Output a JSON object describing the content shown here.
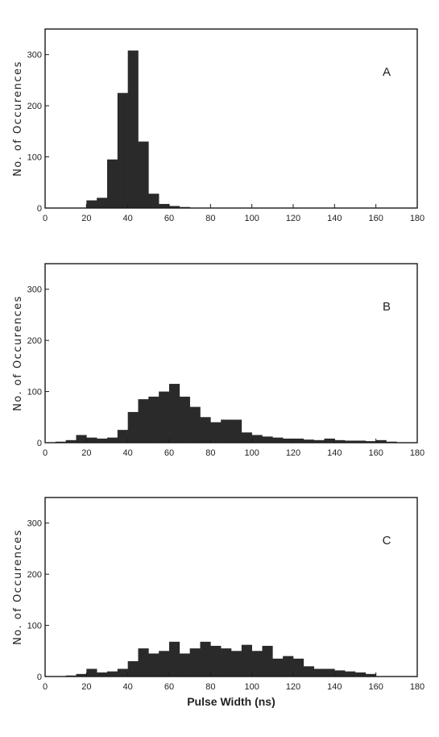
{
  "chart_data": [
    {
      "type": "bar",
      "panel_label": "A",
      "ylabel": "No. of Occurences",
      "xlim": [
        0,
        180
      ],
      "ylim": [
        0,
        350
      ],
      "x_ticks": [
        "0",
        "20",
        "40",
        "60",
        "80",
        "100",
        "120",
        "140",
        "160",
        "180"
      ],
      "y_ticks": [
        "0",
        "100",
        "200",
        "300"
      ],
      "bin_width": 5,
      "bins": [
        {
          "x": 20,
          "y": 15
        },
        {
          "x": 25,
          "y": 20
        },
        {
          "x": 30,
          "y": 95
        },
        {
          "x": 35,
          "y": 225
        },
        {
          "x": 40,
          "y": 308
        },
        {
          "x": 45,
          "y": 130
        },
        {
          "x": 50,
          "y": 28
        },
        {
          "x": 55,
          "y": 8
        },
        {
          "x": 60,
          "y": 4
        },
        {
          "x": 65,
          "y": 2
        }
      ]
    },
    {
      "type": "bar",
      "panel_label": "B",
      "ylabel": "No. of Occurences",
      "xlim": [
        0,
        180
      ],
      "ylim": [
        0,
        350
      ],
      "x_ticks": [
        "0",
        "20",
        "40",
        "60",
        "80",
        "100",
        "120",
        "140",
        "160",
        "180"
      ],
      "y_ticks": [
        "0",
        "100",
        "200",
        "300"
      ],
      "bin_width": 5,
      "bins": [
        {
          "x": 5,
          "y": 2
        },
        {
          "x": 10,
          "y": 5
        },
        {
          "x": 15,
          "y": 15
        },
        {
          "x": 20,
          "y": 10
        },
        {
          "x": 25,
          "y": 8
        },
        {
          "x": 30,
          "y": 10
        },
        {
          "x": 35,
          "y": 25
        },
        {
          "x": 40,
          "y": 60
        },
        {
          "x": 45,
          "y": 85
        },
        {
          "x": 50,
          "y": 90
        },
        {
          "x": 55,
          "y": 100
        },
        {
          "x": 60,
          "y": 115
        },
        {
          "x": 65,
          "y": 90
        },
        {
          "x": 70,
          "y": 70
        },
        {
          "x": 75,
          "y": 50
        },
        {
          "x": 80,
          "y": 40
        },
        {
          "x": 85,
          "y": 45
        },
        {
          "x": 90,
          "y": 45
        },
        {
          "x": 95,
          "y": 20
        },
        {
          "x": 100,
          "y": 15
        },
        {
          "x": 105,
          "y": 12
        },
        {
          "x": 110,
          "y": 10
        },
        {
          "x": 115,
          "y": 8
        },
        {
          "x": 120,
          "y": 8
        },
        {
          "x": 125,
          "y": 6
        },
        {
          "x": 130,
          "y": 5
        },
        {
          "x": 135,
          "y": 8
        },
        {
          "x": 140,
          "y": 5
        },
        {
          "x": 145,
          "y": 4
        },
        {
          "x": 150,
          "y": 4
        },
        {
          "x": 155,
          "y": 3
        },
        {
          "x": 160,
          "y": 5
        },
        {
          "x": 165,
          "y": 2
        }
      ]
    },
    {
      "type": "bar",
      "panel_label": "C",
      "ylabel": "No. of Occurences",
      "xlabel": "Pulse Width (ns)",
      "xlim": [
        0,
        180
      ],
      "ylim": [
        0,
        350
      ],
      "x_ticks": [
        "0",
        "20",
        "40",
        "60",
        "80",
        "100",
        "120",
        "140",
        "160",
        "180"
      ],
      "y_ticks": [
        "0",
        "100",
        "200",
        "300"
      ],
      "bin_width": 5,
      "bins": [
        {
          "x": 10,
          "y": 2
        },
        {
          "x": 15,
          "y": 5
        },
        {
          "x": 20,
          "y": 15
        },
        {
          "x": 25,
          "y": 8
        },
        {
          "x": 30,
          "y": 10
        },
        {
          "x": 35,
          "y": 15
        },
        {
          "x": 40,
          "y": 30
        },
        {
          "x": 45,
          "y": 55
        },
        {
          "x": 50,
          "y": 45
        },
        {
          "x": 55,
          "y": 50
        },
        {
          "x": 60,
          "y": 68
        },
        {
          "x": 65,
          "y": 45
        },
        {
          "x": 70,
          "y": 55
        },
        {
          "x": 75,
          "y": 68
        },
        {
          "x": 80,
          "y": 60
        },
        {
          "x": 85,
          "y": 55
        },
        {
          "x": 90,
          "y": 50
        },
        {
          "x": 95,
          "y": 62
        },
        {
          "x": 100,
          "y": 50
        },
        {
          "x": 105,
          "y": 60
        },
        {
          "x": 110,
          "y": 35
        },
        {
          "x": 115,
          "y": 40
        },
        {
          "x": 120,
          "y": 35
        },
        {
          "x": 125,
          "y": 20
        },
        {
          "x": 130,
          "y": 15
        },
        {
          "x": 135,
          "y": 15
        },
        {
          "x": 140,
          "y": 12
        },
        {
          "x": 145,
          "y": 10
        },
        {
          "x": 150,
          "y": 8
        },
        {
          "x": 155,
          "y": 5
        }
      ]
    }
  ]
}
